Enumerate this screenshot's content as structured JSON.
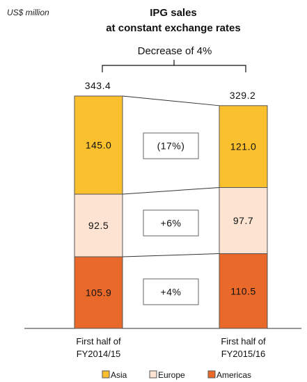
{
  "chart_data": {
    "type": "bar",
    "stacked": true,
    "unit": "US$ million",
    "title": "IPG sales",
    "subtitle": "at constant exchange rates",
    "summary": "Decrease of 4%",
    "categories": [
      "First half of FY2014/15",
      "First half of FY2015/16"
    ],
    "category_lines": [
      [
        "First half of",
        "FY2014/15"
      ],
      [
        "First half of",
        "FY2015/16"
      ]
    ],
    "totals": [
      "343.4",
      "329.2"
    ],
    "series": [
      {
        "name": "Americas",
        "values": [
          105.9,
          110.5
        ],
        "labels": [
          "105.9",
          "110.5"
        ],
        "change": "+4%",
        "color": "#e8692a"
      },
      {
        "name": "Europe",
        "values": [
          92.5,
          97.7
        ],
        "labels": [
          "92.5",
          "97.7"
        ],
        "change": "+6%",
        "color": "#fde4d2"
      },
      {
        "name": "Asia",
        "values": [
          145.0,
          121.0
        ],
        "labels": [
          "145.0",
          "121.0"
        ],
        "change": "(17%)",
        "color": "#fbc02d"
      }
    ],
    "legend": [
      "Asia",
      "Europe",
      "Americas"
    ],
    "legend_position": "bottom",
    "ylim": [
      0,
      343.4
    ],
    "grid": false
  }
}
